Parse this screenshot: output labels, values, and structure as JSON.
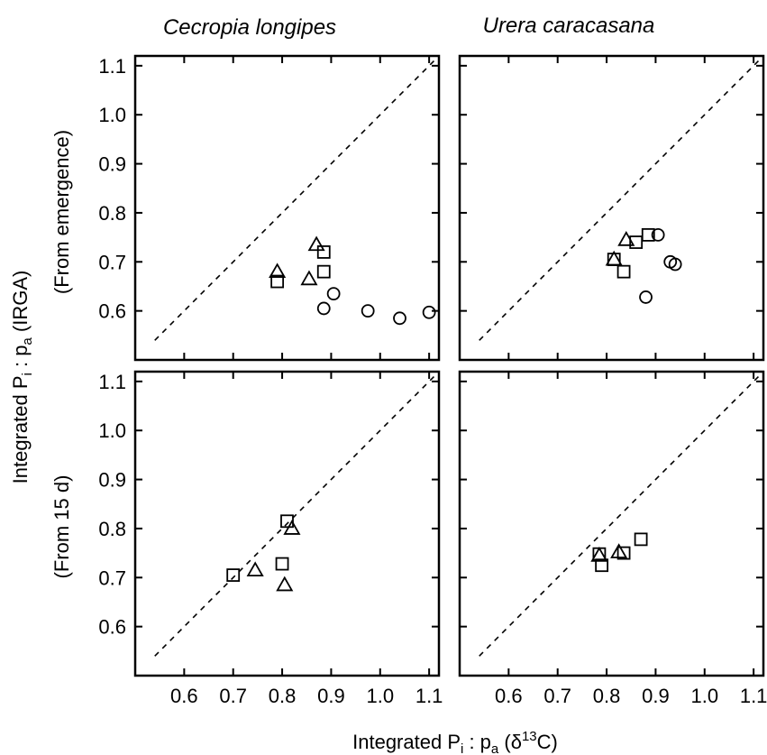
{
  "figure": {
    "xlabel": {
      "pre": "Integrated P",
      "sub1": "i",
      "mid": " : p",
      "sub2": "a",
      "open": " (δ",
      "sup": "13",
      "close": "C)"
    },
    "ylabel": {
      "pre": "Integrated P",
      "sub1": "i",
      "mid": " : p",
      "sub2": "a",
      "post": " (IRGA)"
    },
    "row_labels": [
      "(From emergence)",
      "(From 15 d)"
    ],
    "col_titles": [
      "Cecropia longipes",
      "Urera caracasana"
    ],
    "y_ticks": [
      "0.6",
      "0.7",
      "0.8",
      "0.9",
      "1.0",
      "1.1"
    ],
    "x_ticks": [
      "0.6",
      "0.7",
      "0.8",
      "0.9",
      "1.0",
      "1.1"
    ]
  },
  "chart_data": [
    {
      "type": "scatter",
      "panel": "Cecropia longipes — From emergence",
      "xlim": [
        0.5,
        1.12
      ],
      "ylim": [
        0.5,
        1.12
      ],
      "reference_line": "1:1 dashed",
      "series": [
        {
          "marker": "square",
          "points": [
            [
              0.79,
              0.66
            ],
            [
              0.885,
              0.72
            ],
            [
              0.885,
              0.68
            ]
          ]
        },
        {
          "marker": "triangle",
          "points": [
            [
              0.79,
              0.68
            ],
            [
              0.87,
              0.735
            ],
            [
              0.855,
              0.665
            ]
          ]
        },
        {
          "marker": "circle",
          "points": [
            [
              0.885,
              0.605
            ],
            [
              0.905,
              0.635
            ],
            [
              0.975,
              0.6
            ],
            [
              1.04,
              0.585
            ],
            [
              1.1,
              0.597
            ]
          ]
        }
      ]
    },
    {
      "type": "scatter",
      "panel": "Urera caracasana — From emergence",
      "xlim": [
        0.5,
        1.12
      ],
      "ylim": [
        0.5,
        1.12
      ],
      "reference_line": "1:1 dashed",
      "series": [
        {
          "marker": "square",
          "points": [
            [
              0.815,
              0.705
            ],
            [
              0.835,
              0.68
            ],
            [
              0.86,
              0.74
            ],
            [
              0.885,
              0.755
            ]
          ]
        },
        {
          "marker": "triangle",
          "points": [
            [
              0.815,
              0.705
            ],
            [
              0.84,
              0.745
            ]
          ]
        },
        {
          "marker": "circle",
          "points": [
            [
              0.88,
              0.628
            ],
            [
              0.905,
              0.755
            ],
            [
              0.93,
              0.7
            ],
            [
              0.94,
              0.695
            ]
          ]
        }
      ]
    },
    {
      "type": "scatter",
      "panel": "Cecropia longipes — From 15 d",
      "xlim": [
        0.5,
        1.12
      ],
      "ylim": [
        0.5,
        1.12
      ],
      "reference_line": "1:1 dashed",
      "series": [
        {
          "marker": "square",
          "points": [
            [
              0.7,
              0.705
            ],
            [
              0.8,
              0.728
            ],
            [
              0.81,
              0.815
            ]
          ]
        },
        {
          "marker": "triangle",
          "points": [
            [
              0.745,
              0.715
            ],
            [
              0.805,
              0.685
            ],
            [
              0.82,
              0.8
            ]
          ]
        }
      ]
    },
    {
      "type": "scatter",
      "panel": "Urera caracasana — From 15 d",
      "xlim": [
        0.5,
        1.12
      ],
      "ylim": [
        0.5,
        1.12
      ],
      "reference_line": "1:1 dashed",
      "series": [
        {
          "marker": "square",
          "points": [
            [
              0.785,
              0.748
            ],
            [
              0.79,
              0.725
            ],
            [
              0.835,
              0.75
            ],
            [
              0.87,
              0.778
            ]
          ]
        },
        {
          "marker": "triangle",
          "points": [
            [
              0.785,
              0.745
            ],
            [
              0.825,
              0.752
            ]
          ]
        }
      ]
    }
  ]
}
